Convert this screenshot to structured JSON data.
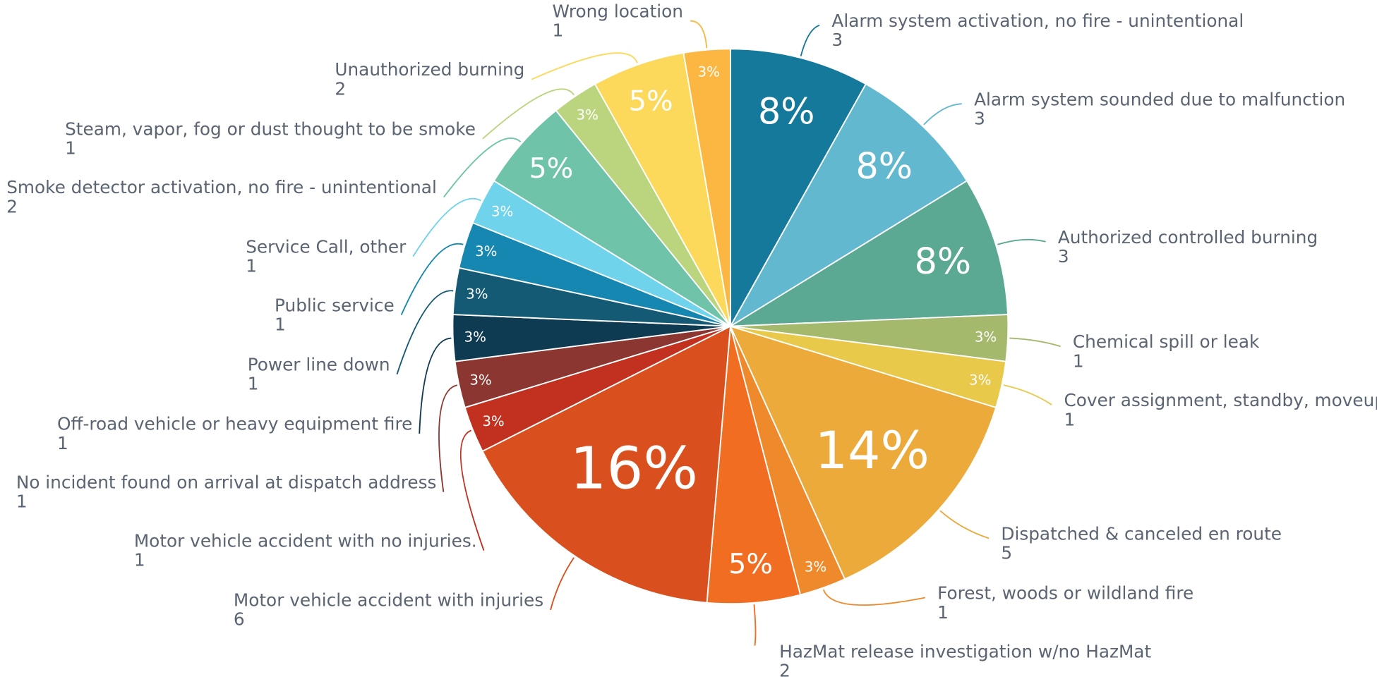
{
  "chart_data": {
    "type": "pie",
    "categories": [
      "Alarm system activation, no fire - unintentional",
      "Alarm system sounded due to malfunction",
      "Authorized controlled burning",
      "Chemical spill or leak",
      "Cover assignment, standby, moveup",
      "Dispatched & canceled en route",
      "Forest, woods or wildland fire",
      "HazMat release investigation w/no HazMat",
      "Motor vehicle accident with injuries",
      "Motor vehicle accident with no injuries.",
      "No incident found on arrival at dispatch address",
      "Off-road vehicle or heavy equipment fire",
      "Power line down",
      "Public service",
      "Service Call, other",
      "Smoke detector activation, no fire - unintentional",
      "Steam, vapor, fog or dust thought to be smoke",
      "Unauthorized burning",
      "Wrong location"
    ],
    "values": [
      3,
      3,
      3,
      1,
      1,
      5,
      1,
      2,
      6,
      1,
      1,
      1,
      1,
      1,
      1,
      2,
      1,
      2,
      1
    ],
    "value_labels": [
      "8%",
      "8%",
      "8%",
      "3%",
      "3%",
      "14%",
      "3%",
      "5%",
      "16%",
      "3%",
      "3%",
      "3%",
      "3%",
      "3%",
      "3%",
      "5%",
      "3%",
      "5%",
      "3%"
    ],
    "colors": [
      "#15799b",
      "#62b8cf",
      "#5ba893",
      "#a4b96c",
      "#e8c94a",
      "#ecaa3a",
      "#ef8a2c",
      "#f06d22",
      "#d94f1e",
      "#c2301f",
      "#8b3630",
      "#0e3a52",
      "#145a74",
      "#1687b0",
      "#6fd3ec",
      "#6fc3a9",
      "#bbd57e",
      "#fcd95b",
      "#fbb741"
    ]
  }
}
